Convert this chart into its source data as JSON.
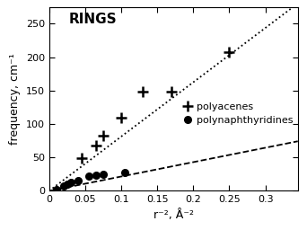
{
  "title": "RINGS",
  "xlabel": "r⁻², Å⁻²",
  "ylabel": "frequency, cm⁻¹",
  "xlim": [
    0,
    0.345
  ],
  "ylim": [
    0,
    275
  ],
  "polyacenes_x": [
    0.045,
    0.065,
    0.075,
    0.1,
    0.13,
    0.17,
    0.25
  ],
  "polyacenes_y": [
    49,
    68,
    82,
    110,
    148,
    148,
    207
  ],
  "polynaphthyridines_x": [
    0.01,
    0.02,
    0.025,
    0.03,
    0.04,
    0.055,
    0.065,
    0.075,
    0.105
  ],
  "polynaphthyridines_y": [
    2,
    8,
    10,
    13,
    16,
    22,
    24,
    25,
    28
  ],
  "polyacenes_fit_slope": 812,
  "polyacenes_fit_intercept": 0,
  "polynaphthyridines_fit_slope": 215,
  "polynaphthyridines_fit_intercept": 0,
  "legend_polyacenes": "polyacenes",
  "legend_polynaphthyridines": "polynaphthyridines",
  "xticks": [
    0.0,
    0.05,
    0.1,
    0.15,
    0.2,
    0.25,
    0.3
  ],
  "yticks": [
    0,
    50,
    100,
    150,
    200,
    250
  ],
  "title_fontsize": 11,
  "axis_fontsize": 9,
  "tick_fontsize": 8
}
